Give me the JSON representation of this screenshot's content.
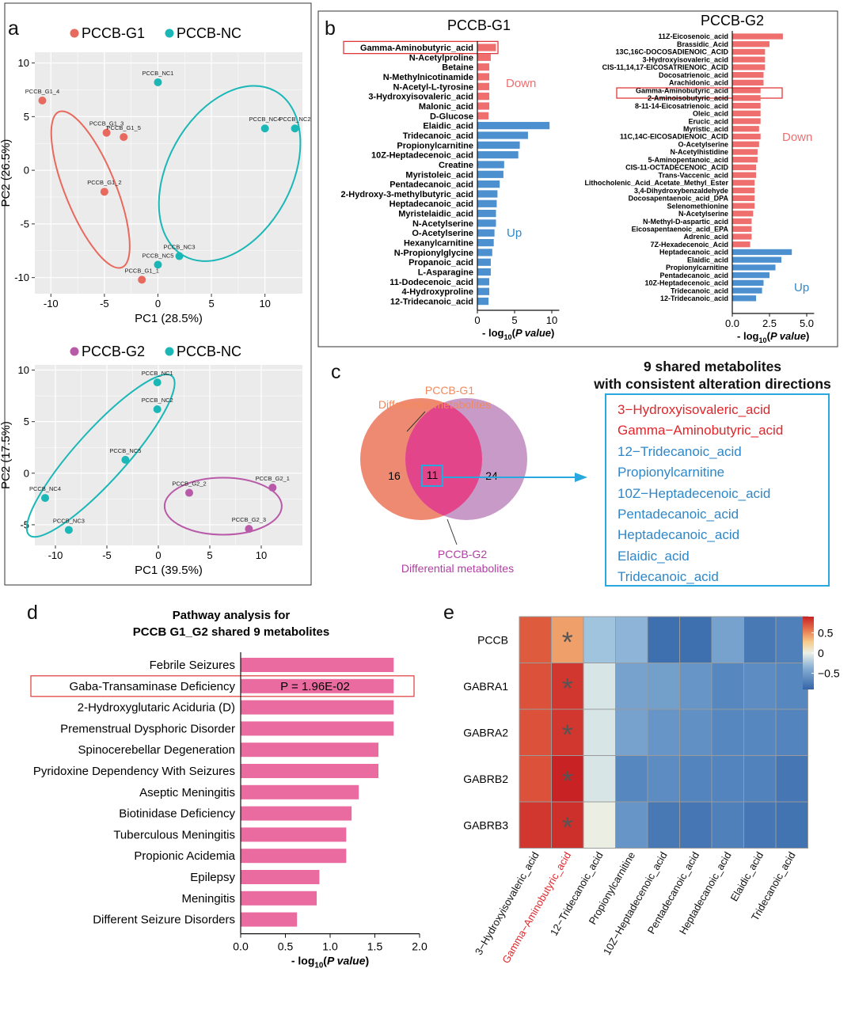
{
  "panel_labels": {
    "a": "a",
    "b": "b",
    "c": "c",
    "d": "d",
    "e": "e"
  },
  "colors": {
    "g1": "#e8695d",
    "nc": "#1bb7b7",
    "g2": "#b85aa8",
    "down": "#ef6f6f",
    "up": "#4d90d0",
    "pathway": "#e96ba0",
    "highlight": "#e0383a",
    "shared_box": "#29a8df",
    "up_text": "#2f87c8"
  },
  "chart_data": [
    {
      "id": "pca_g1",
      "type": "scatter",
      "xlabel": "PC1 (28.5%)",
      "ylabel": "PC2 (26.5%)",
      "xlim": [
        -11.5,
        13.5
      ],
      "ylim": [
        -11.5,
        11
      ],
      "xticks": [
        "-10",
        "-5",
        "0",
        "5",
        "10"
      ],
      "yticks": [
        "10",
        "5",
        "0",
        "-5",
        "-10"
      ],
      "xtick_values": [
        -10,
        -5,
        0,
        5,
        10
      ],
      "ytick_values": [
        10,
        5,
        0,
        -5,
        -10
      ],
      "legend": [
        {
          "name": "PCCB-G1",
          "color": "#e8695d"
        },
        {
          "name": "PCCB-NC",
          "color": "#1bb7b7"
        }
      ],
      "points": [
        {
          "label": "PCCB_G1_4",
          "x": -10.8,
          "y": 6.5,
          "group": "g1"
        },
        {
          "label": "PCCB_G1_3",
          "x": -4.8,
          "y": 3.5,
          "group": "g1"
        },
        {
          "label": "PCCB_G1_5",
          "x": -3.2,
          "y": 3.1,
          "group": "g1"
        },
        {
          "label": "PCCB_G1_2",
          "x": -5.0,
          "y": -2.0,
          "group": "g1"
        },
        {
          "label": "PCCB_G1_1",
          "x": -1.5,
          "y": -10.2,
          "group": "g1"
        },
        {
          "label": "PCCB_NC1",
          "x": 0.0,
          "y": 8.2,
          "group": "nc"
        },
        {
          "label": "PCCB_NC2",
          "x": 12.8,
          "y": 3.9,
          "group": "nc"
        },
        {
          "label": "PCCB_NC4",
          "x": 10.0,
          "y": 3.9,
          "group": "nc"
        },
        {
          "label": "PCCB_NC3",
          "x": 2.0,
          "y": -8.0,
          "group": "nc"
        },
        {
          "label": "PCCB_NC5",
          "x": 0.0,
          "y": -8.8,
          "group": "nc"
        }
      ]
    },
    {
      "id": "pca_g2",
      "type": "scatter",
      "xlabel": "PC1 (39.5%)",
      "ylabel": "PC2 (17.5%)",
      "xlim": [
        -12,
        14
      ],
      "ylim": [
        -7,
        10.5
      ],
      "xticks": [
        "-10",
        "-5",
        "0",
        "5",
        "10"
      ],
      "yticks": [
        "10",
        "5",
        "0",
        "-5"
      ],
      "xtick_values": [
        -10,
        -5,
        0,
        5,
        10
      ],
      "ytick_values": [
        10,
        5,
        0,
        -5
      ],
      "legend": [
        {
          "name": "PCCB-G2",
          "color": "#b85aa8"
        },
        {
          "name": "PCCB-NC",
          "color": "#1bb7b7"
        }
      ],
      "points": [
        {
          "label": "PCCB_NC1",
          "x": -0.1,
          "y": 8.8,
          "group": "nc"
        },
        {
          "label": "PCCB_NC2",
          "x": -0.1,
          "y": 6.2,
          "group": "nc"
        },
        {
          "label": "PCCB_NC5",
          "x": -3.2,
          "y": 1.3,
          "group": "nc"
        },
        {
          "label": "PCCB_NC4",
          "x": -11.0,
          "y": -2.4,
          "group": "nc"
        },
        {
          "label": "PCCB_NC3",
          "x": -8.7,
          "y": -5.5,
          "group": "nc"
        },
        {
          "label": "PCCB_G2_1",
          "x": 11.1,
          "y": -1.4,
          "group": "g2"
        },
        {
          "label": "PCCB_G2_2",
          "x": 3.0,
          "y": -1.9,
          "group": "g2"
        },
        {
          "label": "PCCB_G2_3",
          "x": 8.8,
          "y": -5.4,
          "group": "g2"
        }
      ]
    },
    {
      "id": "bar_g1",
      "type": "bar",
      "orientation": "horizontal",
      "title": "PCCB-G1",
      "xlabel": "- log10(P value)",
      "xlim": [
        0,
        11.5
      ],
      "xticks": [
        "0",
        "5",
        "10"
      ],
      "xtick_values": [
        0,
        5,
        10
      ],
      "down_label": "Down",
      "up_label": "Up",
      "highlighted": "Gamma-Aminobutyric_acid",
      "categories": [
        "Gamma-Aminobutyric_acid",
        "N-Acetylproline",
        "Betaine",
        "N-Methylnicotinamide",
        "N-Acetyl-L-tyrosine",
        "3-Hydroxyisovaleric_acid",
        "Malonic_acid",
        "D-Glucose",
        "Elaidic_acid",
        "Tridecanoic_acid",
        "Propionylcarnitine",
        "10Z-Heptadecenoic_acid",
        "Creatine",
        "Myristoleic_acid",
        "Pentadecanoic_acid",
        "2-Hydroxy-3-methylbutyric_acid",
        "Heptadecanoic_acid",
        "Myristelaidic_acid",
        "N-Acetylserine",
        "O-Acetylserine",
        "Hexanylcarnitine",
        "N-Propionylglycine",
        "Propanoic_acid",
        "L-Asparagine",
        "11-Dodecenoic_acid",
        "4-Hydroxyproline",
        "12-Tridecanoic_acid"
      ],
      "values": [
        2.5,
        1.8,
        1.6,
        1.6,
        1.6,
        1.6,
        1.6,
        1.5,
        9.7,
        6.8,
        5.7,
        5.5,
        3.6,
        3.5,
        3.0,
        2.7,
        2.6,
        2.5,
        2.5,
        2.3,
        2.2,
        2.0,
        1.8,
        1.8,
        1.6,
        1.6,
        1.5
      ],
      "direction": [
        "down",
        "down",
        "down",
        "down",
        "down",
        "down",
        "down",
        "down",
        "up",
        "up",
        "up",
        "up",
        "up",
        "up",
        "up",
        "up",
        "up",
        "up",
        "up",
        "up",
        "up",
        "up",
        "up",
        "up",
        "up",
        "up",
        "up"
      ]
    },
    {
      "id": "bar_g2",
      "type": "bar",
      "orientation": "horizontal",
      "title": "PCCB-G2",
      "xlabel": "- log10(P value)",
      "xlim": [
        0,
        5.3
      ],
      "xticks": [
        "0.0",
        "2.5",
        "5.0"
      ],
      "xtick_values": [
        0,
        2.5,
        5
      ],
      "down_label": "Down",
      "up_label": "Up",
      "highlighted": "Gamma-Aminobutyric_acid",
      "categories": [
        "11Z-Eicosenoic_acid",
        "Brassidic_Acid",
        "13C,16C-DOCOSADIENOIC_ACID",
        "3-Hydroxyisovaleric_acid",
        "CIS-11,14,17-EICOSATRIENOIC_ACID",
        "Docosatrienoic_acid",
        "Arachidonic_acid",
        "Gamma-Aminobutyric_acid",
        "2-Aminoisobutyric_acid",
        "8-11-14-Eicosatrienoic_acid",
        "Oleic_acid",
        "Erucic_acid",
        "Myristic_acid",
        "11C,14C-EICOSADIENOIC_ACID",
        "O-Acetylserine",
        "N-Acetylhistidine",
        "5-Aminopentanoic_acid",
        "CIS-11-OCTADECENOIC_ACID",
        "Trans-Vaccenic_acid",
        "Lithocholenic_Acid_Acetate_Methyl_Ester",
        "3,4-Dihydroxybenzaldehyde",
        "Docosapentaenoic_acid_DPA",
        "Selenomethionine",
        "N-Acetylserine",
        "N-Methyl-D-aspartic_acid",
        "Eicosapentaenoic_acid_EPA",
        "Adrenic_acid",
        "7Z-Hexadecenoic_Acid",
        "Heptadecanoic_acid",
        "Elaidic_acid",
        "Propionylcarnitine",
        "Pentadecanoic_acid",
        "10Z-Heptadecenoic_acid",
        "Tridecanoic_acid",
        "12-Tridecanoic_acid"
      ],
      "values": [
        3.4,
        2.5,
        2.2,
        2.2,
        2.2,
        2.1,
        2.1,
        1.9,
        1.9,
        1.9,
        1.9,
        1.9,
        1.8,
        1.9,
        1.8,
        1.7,
        1.7,
        1.6,
        1.6,
        1.5,
        1.5,
        1.5,
        1.5,
        1.4,
        1.3,
        1.3,
        1.3,
        1.2,
        4.0,
        3.3,
        2.9,
        2.5,
        2.1,
        2.0,
        1.6
      ],
      "direction": [
        "down",
        "down",
        "down",
        "down",
        "down",
        "down",
        "down",
        "down",
        "down",
        "down",
        "down",
        "down",
        "down",
        "down",
        "down",
        "down",
        "down",
        "down",
        "down",
        "down",
        "down",
        "down",
        "down",
        "down",
        "down",
        "down",
        "down",
        "down",
        "up",
        "up",
        "up",
        "up",
        "up",
        "up",
        "up"
      ]
    },
    {
      "id": "venn",
      "type": "venn",
      "sets": [
        {
          "name": "PCCB-G1",
          "subtitle": "Differential metabolites",
          "only": "16"
        },
        {
          "name": "PCCB-G2",
          "subtitle": "Differential  metabolites",
          "only": "24"
        }
      ],
      "intersection": "11",
      "title_line1": "9 shared metabolites",
      "title_line2": "with consistent alteration directions",
      "shared": [
        {
          "name": "3−Hydroxyisovaleric_acid",
          "color": "#e0262b"
        },
        {
          "name": "Gamma−Aminobutyric_acid",
          "color": "#e0262b"
        },
        {
          "name": "12−Tridecanoic_acid",
          "color": "#2f87c8"
        },
        {
          "name": "Propionylcarnitine",
          "color": "#2f87c8"
        },
        {
          "name": "10Z−Heptadecenoic_acid",
          "color": "#2f87c8"
        },
        {
          "name": "Pentadecanoic_acid",
          "color": "#2f87c8"
        },
        {
          "name": "Heptadecanoic_acid",
          "color": "#2f87c8"
        },
        {
          "name": "Elaidic_acid",
          "color": "#2f87c8"
        },
        {
          "name": "Tridecanoic_acid",
          "color": "#2f87c8"
        }
      ]
    },
    {
      "id": "pathway",
      "type": "bar",
      "orientation": "horizontal",
      "title_line1": "Pathway analysis for",
      "title_line2": "PCCB G1_G2 shared 9 metabolites",
      "xlabel": "- log10(P value)",
      "xlim": [
        0,
        2.0
      ],
      "xticks": [
        "0.0",
        "0.5",
        "1.0",
        "1.5",
        "2.0"
      ],
      "xtick_values": [
        0,
        0.5,
        1.0,
        1.5,
        2.0
      ],
      "highlighted": "Gaba-Transaminase Deficiency",
      "annotation": "P = 1.96E-02",
      "categories": [
        "Febrile Seizures",
        "Gaba-Transaminase Deficiency",
        "2-Hydroxyglutaric Aciduria (D)",
        "Premenstrual Dysphoric Disorder",
        "Spinocerebellar Degeneration",
        "Pyridoxine Dependency With Seizures",
        "Aseptic Meningitis",
        "Biotinidase Deficiency",
        "Tuberculous Meningitis",
        "Propionic Acidemia",
        "Epilepsy",
        "Meningitis",
        "Different Seizure Disorders"
      ],
      "values": [
        1.71,
        1.71,
        1.71,
        1.71,
        1.54,
        1.54,
        1.32,
        1.24,
        1.18,
        1.18,
        0.88,
        0.85,
        0.63
      ]
    },
    {
      "id": "heatmap",
      "type": "heatmap",
      "rows": [
        "PCCB",
        "GABRA1",
        "GABRA2",
        "GABRB2",
        "GABRB3"
      ],
      "columns": [
        "3−Hydroxyisovaleric_acid",
        "Gamma−Aminobutyric_acid",
        "12−Tridecanoic_acid",
        "Propionylcarnitine",
        "10Z−Heptadecenoic_acid",
        "Pentadecanoic_acid",
        "Heptadecanoic_acid",
        "Elaidic_acid",
        "Tridecanoic_acid"
      ],
      "highlighted_column": "Gamma−Aminobutyric_acid",
      "values": [
        [
          0.68,
          0.45,
          -0.2,
          -0.28,
          -0.8,
          -0.8,
          -0.38,
          -0.7,
          -0.62
        ],
        [
          0.72,
          0.82,
          -0.05,
          -0.38,
          -0.4,
          -0.45,
          -0.55,
          -0.5,
          -0.55
        ],
        [
          0.72,
          0.82,
          -0.05,
          -0.38,
          -0.45,
          -0.48,
          -0.55,
          -0.55,
          -0.58
        ],
        [
          0.72,
          0.95,
          -0.05,
          -0.55,
          -0.5,
          -0.58,
          -0.58,
          -0.6,
          -0.72
        ],
        [
          0.82,
          0.85,
          0.02,
          -0.45,
          -0.7,
          -0.72,
          -0.62,
          -0.72,
          -0.75
        ]
      ],
      "marker": "*",
      "marked_column": 1,
      "colorbar_ticks": [
        "0.5",
        "0",
        "−0.5"
      ],
      "colorbar_tick_values": [
        0.5,
        0,
        -0.5
      ],
      "colorbar_range": [
        -0.9,
        0.9
      ]
    }
  ]
}
